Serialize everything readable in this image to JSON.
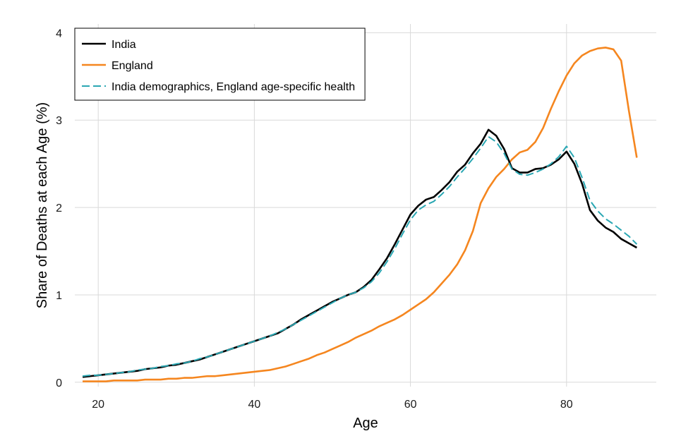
{
  "chart_data": {
    "type": "line",
    "title": "",
    "xlabel": "Age",
    "ylabel": "Share of Deaths at each Age (%)",
    "xlim": [
      17,
      91.5
    ],
    "ylim": [
      -0.05,
      4.1
    ],
    "x_ticks": [
      20,
      40,
      60,
      80
    ],
    "y_ticks": [
      0,
      1,
      2,
      3,
      4
    ],
    "grid": true,
    "legend_position": "top-left",
    "x": [
      18,
      19,
      20,
      21,
      22,
      23,
      24,
      25,
      26,
      27,
      28,
      29,
      30,
      31,
      32,
      33,
      34,
      35,
      36,
      37,
      38,
      39,
      40,
      41,
      42,
      43,
      44,
      45,
      46,
      47,
      48,
      49,
      50,
      51,
      52,
      53,
      54,
      55,
      56,
      57,
      58,
      59,
      60,
      61,
      62,
      63,
      64,
      65,
      66,
      67,
      68,
      69,
      70,
      71,
      72,
      73,
      74,
      75,
      76,
      77,
      78,
      79,
      80,
      81,
      82,
      83,
      84,
      85,
      86,
      87,
      88,
      89
    ],
    "series": [
      {
        "name": "India",
        "color": "#000000",
        "dash": "solid",
        "values": [
          0.06,
          0.07,
          0.08,
          0.09,
          0.1,
          0.11,
          0.12,
          0.13,
          0.15,
          0.16,
          0.17,
          0.19,
          0.2,
          0.22,
          0.24,
          0.26,
          0.29,
          0.32,
          0.35,
          0.38,
          0.41,
          0.44,
          0.47,
          0.5,
          0.53,
          0.56,
          0.61,
          0.66,
          0.72,
          0.77,
          0.82,
          0.87,
          0.92,
          0.96,
          1.0,
          1.03,
          1.09,
          1.17,
          1.29,
          1.42,
          1.58,
          1.75,
          1.92,
          2.02,
          2.09,
          2.12,
          2.2,
          2.29,
          2.41,
          2.49,
          2.62,
          2.73,
          2.89,
          2.82,
          2.67,
          2.45,
          2.4,
          2.4,
          2.44,
          2.45,
          2.49,
          2.55,
          2.64,
          2.5,
          2.27,
          1.97,
          1.85,
          1.77,
          1.72,
          1.64,
          1.59,
          1.54
        ]
      },
      {
        "name": "England",
        "color": "#f5861f",
        "dash": "solid",
        "values": [
          0.01,
          0.01,
          0.01,
          0.01,
          0.02,
          0.02,
          0.02,
          0.02,
          0.03,
          0.03,
          0.03,
          0.04,
          0.04,
          0.05,
          0.05,
          0.06,
          0.07,
          0.07,
          0.08,
          0.09,
          0.1,
          0.11,
          0.12,
          0.13,
          0.14,
          0.16,
          0.18,
          0.21,
          0.24,
          0.27,
          0.31,
          0.34,
          0.38,
          0.42,
          0.46,
          0.51,
          0.55,
          0.59,
          0.64,
          0.68,
          0.72,
          0.77,
          0.83,
          0.89,
          0.95,
          1.03,
          1.13,
          1.23,
          1.35,
          1.51,
          1.73,
          2.05,
          2.22,
          2.35,
          2.44,
          2.55,
          2.63,
          2.66,
          2.75,
          2.91,
          3.13,
          3.33,
          3.51,
          3.65,
          3.74,
          3.79,
          3.82,
          3.83,
          3.81,
          3.68,
          3.1,
          2.57
        ]
      },
      {
        "name": "India demographics, England age-specific health",
        "color": "#2aa7b3",
        "dash": "dashed",
        "values": [
          0.07,
          0.08,
          0.08,
          0.09,
          0.1,
          0.11,
          0.12,
          0.14,
          0.15,
          0.16,
          0.18,
          0.19,
          0.21,
          0.22,
          0.24,
          0.27,
          0.29,
          0.32,
          0.35,
          0.38,
          0.41,
          0.44,
          0.47,
          0.5,
          0.53,
          0.57,
          0.61,
          0.66,
          0.71,
          0.76,
          0.81,
          0.86,
          0.91,
          0.96,
          1.0,
          1.03,
          1.08,
          1.15,
          1.25,
          1.38,
          1.53,
          1.7,
          1.86,
          1.97,
          2.03,
          2.07,
          2.15,
          2.24,
          2.35,
          2.45,
          2.56,
          2.68,
          2.81,
          2.75,
          2.62,
          2.44,
          2.38,
          2.37,
          2.4,
          2.44,
          2.5,
          2.58,
          2.7,
          2.57,
          2.34,
          2.08,
          1.96,
          1.87,
          1.81,
          1.74,
          1.67,
          1.58
        ]
      }
    ]
  }
}
